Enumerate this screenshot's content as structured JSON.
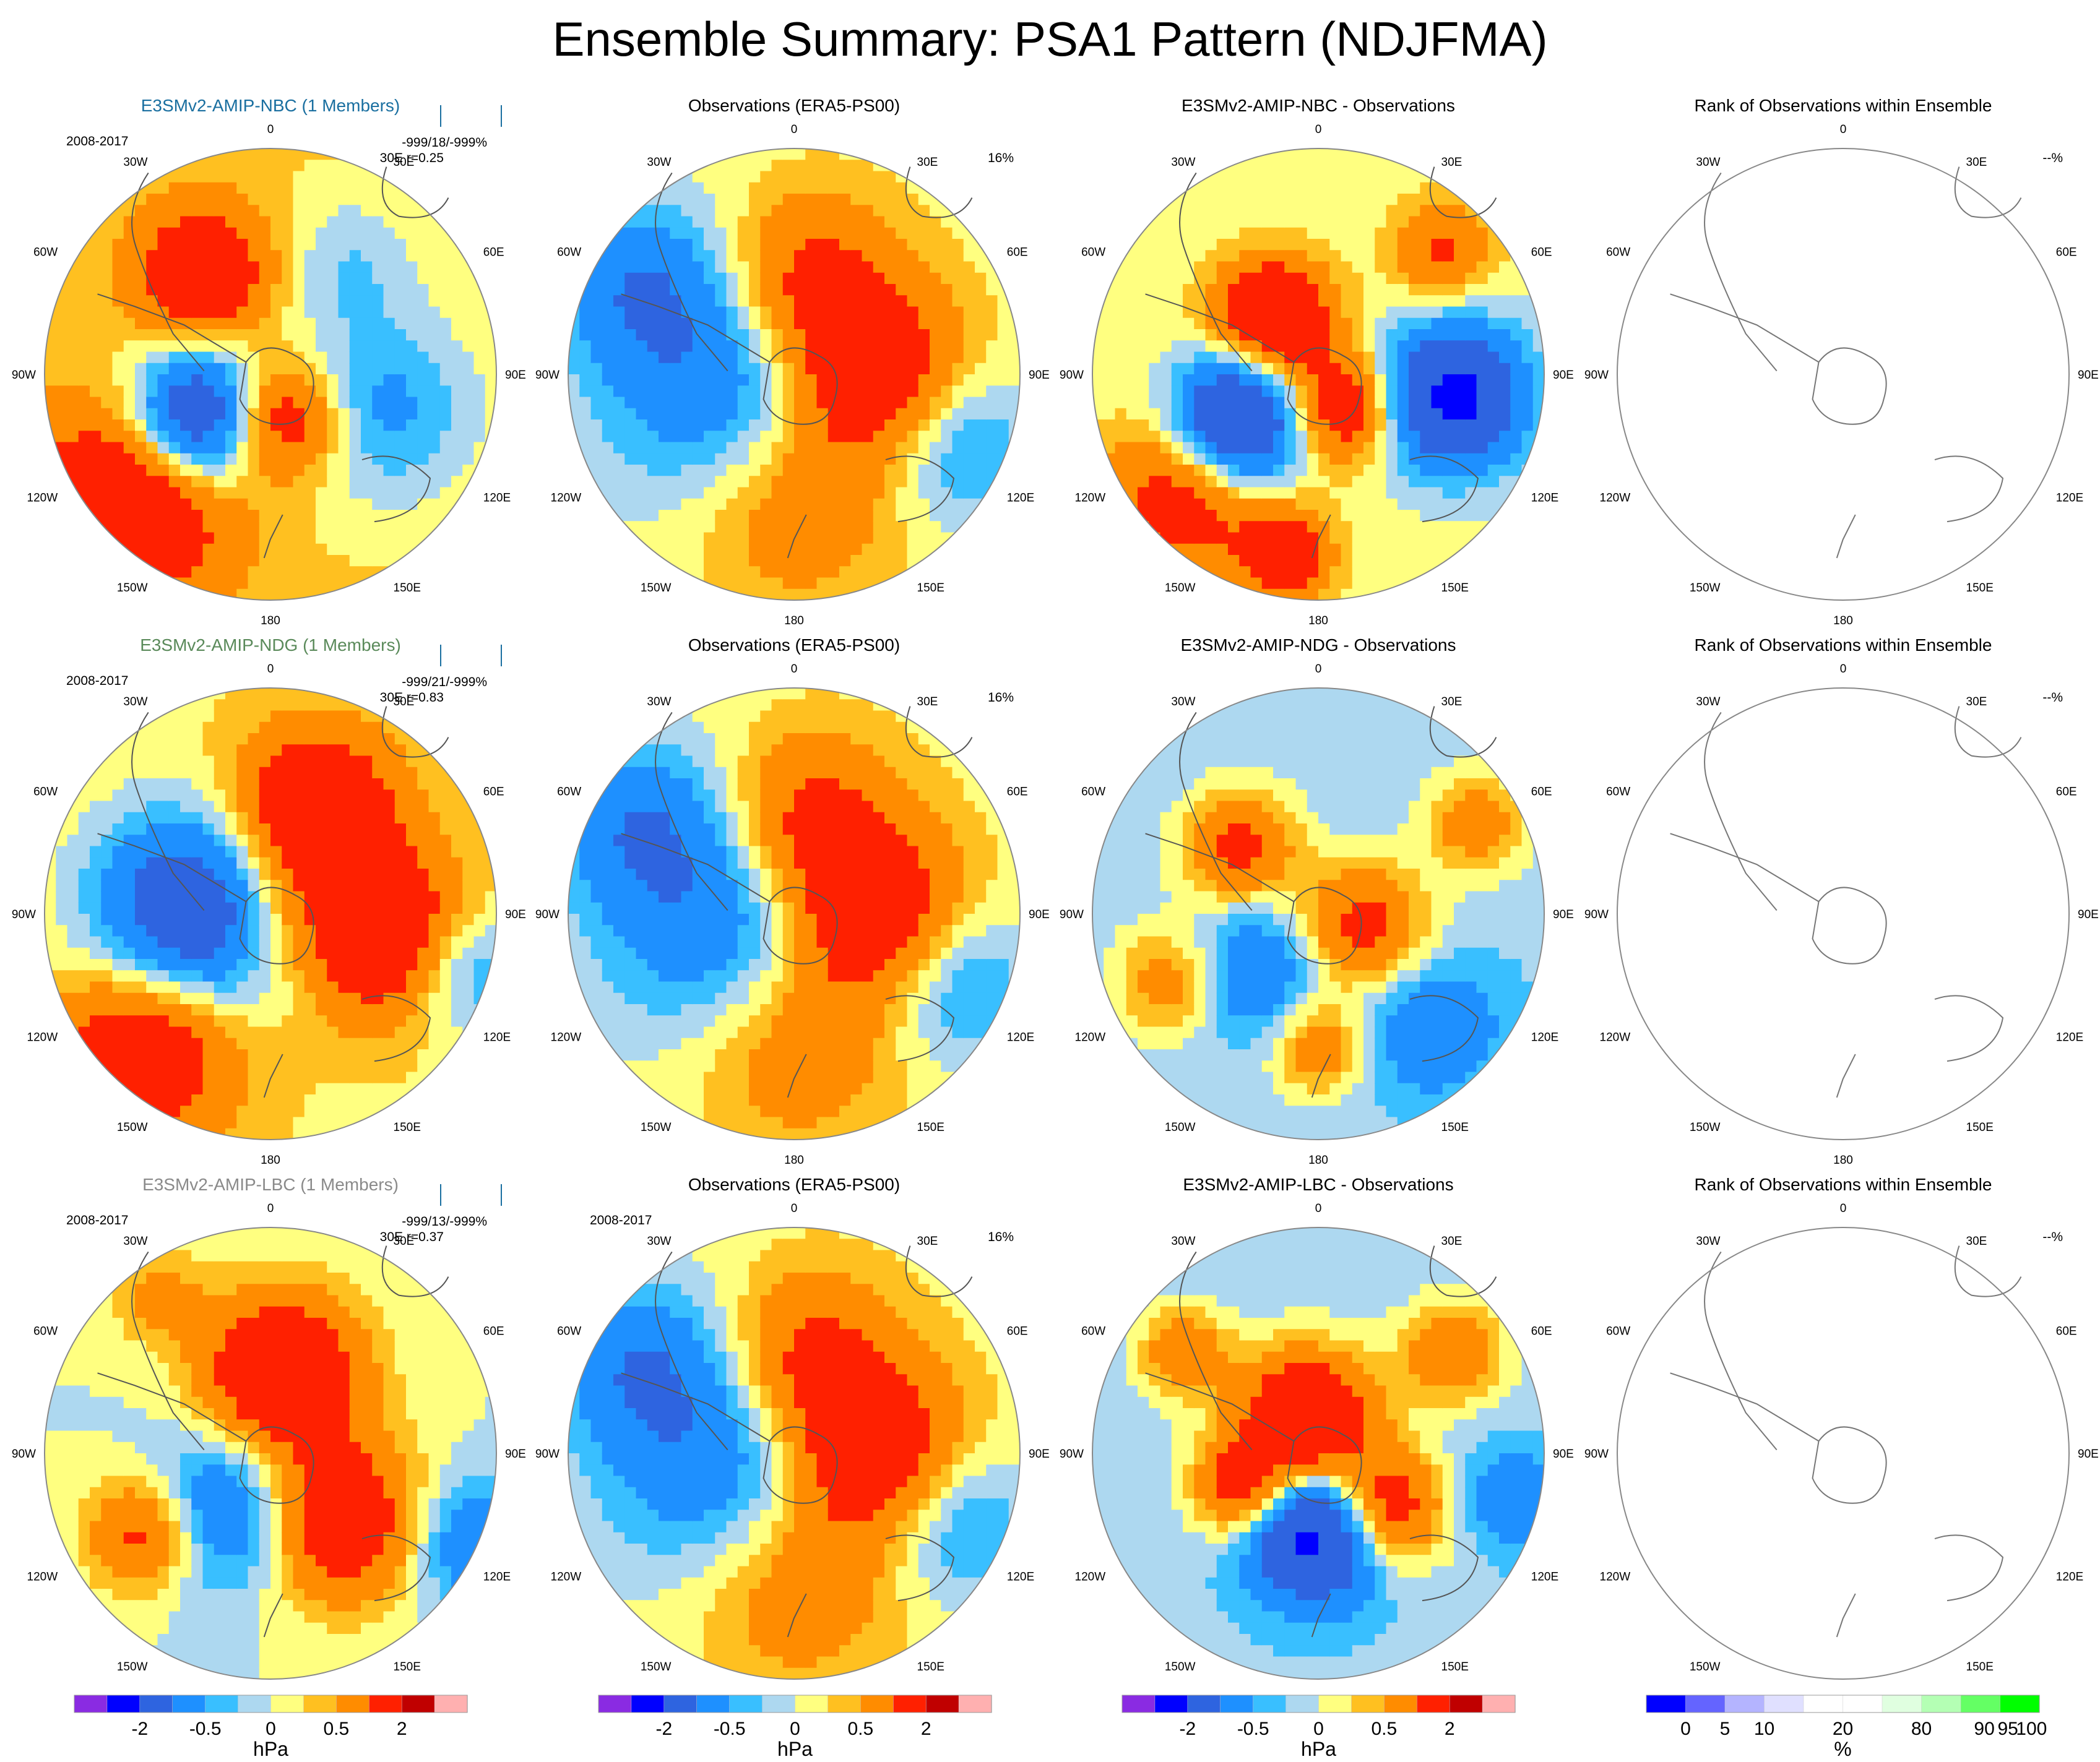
{
  "title": "Ensemble Summary: PSA1 Pattern (NDJFMA)",
  "lon_labels": [
    "0",
    "30E",
    "60E",
    "90E",
    "120E",
    "150E",
    "180",
    "150W",
    "120W",
    "90W",
    "60W",
    "30W"
  ],
  "rows": [
    {
      "model": {
        "label": "E3SMv2-AMIP-NBC (1 Members)",
        "label_color": "#1a6fa0",
        "period": "2008-2017",
        "stats1": "-999/18/-999%",
        "stats2": "30E r=0.25",
        "pattern": "nbc"
      },
      "obs": {
        "label": "Observations (ERA5-PS00)",
        "percent": "16%",
        "pattern": "obs"
      },
      "diff": {
        "label": "E3SMv2-AMIP-NBC - Observations",
        "pattern": "diff_nbc"
      },
      "rank": {
        "label": "Rank of Observations within Ensemble",
        "percent": "--%"
      }
    },
    {
      "model": {
        "label": "E3SMv2-AMIP-NDG (1 Members)",
        "label_color": "#5a8a5a",
        "period": "2008-2017",
        "stats1": "-999/21/-999%",
        "stats2": "30E r=0.83",
        "pattern": "ndg"
      },
      "obs": {
        "label": "Observations (ERA5-PS00)",
        "percent": "16%",
        "pattern": "obs"
      },
      "diff": {
        "label": "E3SMv2-AMIP-NDG - Observations",
        "pattern": "diff_ndg"
      },
      "rank": {
        "label": "Rank of Observations within Ensemble",
        "percent": "--%"
      }
    },
    {
      "model": {
        "label": "E3SMv2-AMIP-LBC (1 Members)",
        "label_color": "#8a8a8a",
        "period": "2008-2017",
        "stats1": "-999/13/-999%",
        "stats2": "30E r=0.37",
        "pattern": "lbc"
      },
      "obs": {
        "label": "Observations (ERA5-PS00)",
        "period": "2008-2017",
        "percent": "16%",
        "pattern": "obs"
      },
      "diff": {
        "label": "E3SMv2-AMIP-LBC - Observations",
        "pattern": "diff_lbc"
      },
      "rank": {
        "label": "Rank of Observations within Ensemble",
        "percent": "--%"
      }
    }
  ],
  "colorbar_hpa": {
    "colors": [
      "#8a2be2",
      "#0000ff",
      "#2e64e0",
      "#1e90ff",
      "#39bfff",
      "#add8f0",
      "#ffff80",
      "#ffc020",
      "#ff8c00",
      "#ff2000",
      "#c00000",
      "#ffb0b0"
    ],
    "tick_labels": [
      "-2",
      "-0.5",
      "0",
      "0.5",
      "2"
    ],
    "unit": "hPa"
  },
  "colorbar_rank": {
    "colors": [
      "#0000ff",
      "#6464ff",
      "#b4b4ff",
      "#e0e0ff",
      "#ffffff",
      "#ffffff",
      "#e0ffe0",
      "#b4ffb4",
      "#64ff64",
      "#00ff00"
    ],
    "tick_labels": [
      "0",
      "5",
      "10",
      "20",
      "80",
      "90",
      "95",
      "100"
    ],
    "unit": "%"
  }
}
